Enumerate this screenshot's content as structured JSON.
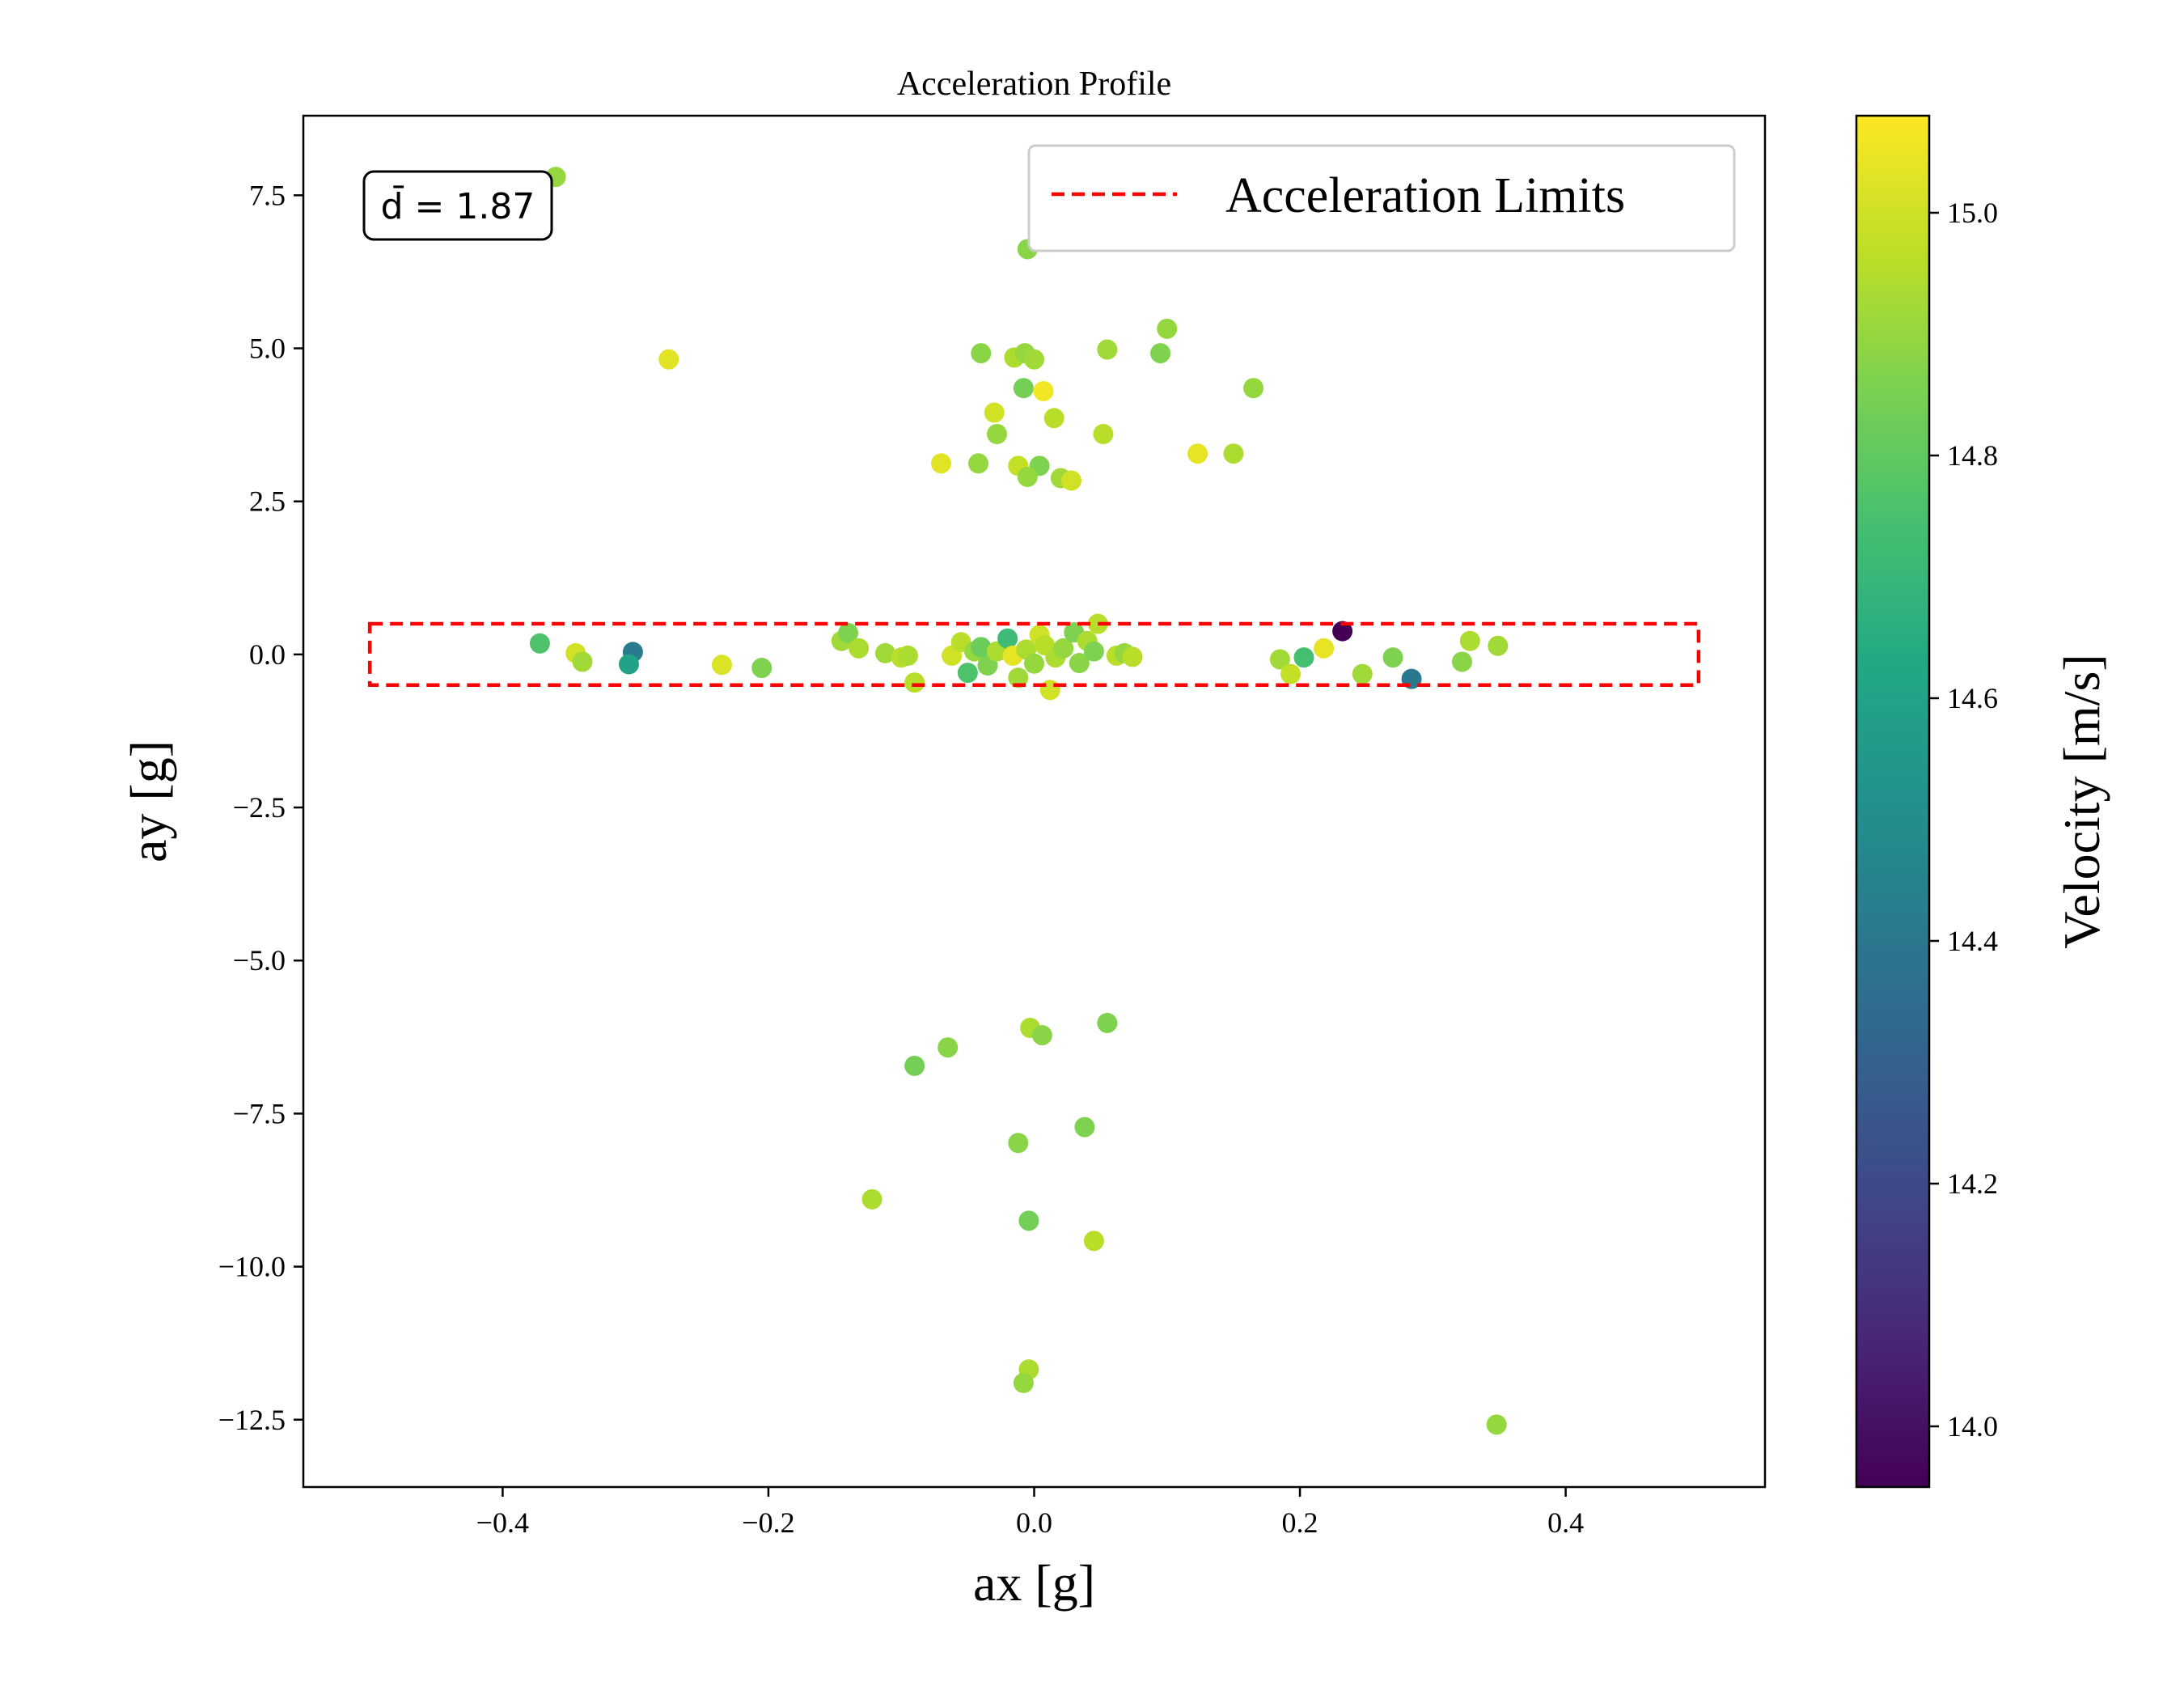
{
  "chart_data": {
    "type": "scatter",
    "title": "Acceleration Profile",
    "xlabel": "ax [g]",
    "ylabel": "ay [g]",
    "xlim": [
      -0.55,
      0.55
    ],
    "ylim": [
      -13.6,
      8.8
    ],
    "xticks": [
      -0.4,
      -0.2,
      0.0,
      0.2,
      0.4
    ],
    "yticks": [
      -12.5,
      -10.0,
      -7.5,
      -5.0,
      -2.5,
      0.0,
      2.5,
      5.0,
      7.5
    ],
    "tick_labels": {
      "x": [
        "−0.4",
        "−0.2",
        "0.0",
        "0.2",
        "0.4"
      ],
      "y": [
        "−12.5",
        "−10.0",
        "−7.5",
        "−5.0",
        "−2.5",
        "0.0",
        "2.5",
        "5.0",
        "7.5"
      ]
    },
    "grid": false,
    "legend": {
      "position": "top-right",
      "entries": [
        {
          "label": "Acceleration Limits",
          "color": "#ff0000",
          "style": "dashed"
        }
      ]
    },
    "limits_box": {
      "x": [
        -0.5,
        0.5
      ],
      "y": [
        -0.5,
        0.5
      ],
      "color": "#ff0000"
    },
    "annotation": {
      "text": "d̄ = 1.87",
      "position": "top-left"
    },
    "colorbar": {
      "label": "Velocity [m/s]",
      "colormap": "viridis",
      "range": [
        13.95,
        15.08
      ],
      "ticks": [
        14.0,
        14.2,
        14.4,
        14.6,
        14.8,
        15.0
      ],
      "tick_labels": [
        "14.0",
        "14.2",
        "14.4",
        "14.6",
        "14.8",
        "15.0"
      ]
    },
    "points": [
      {
        "x": -0.36,
        "y": 7.8,
        "v": 14.9
      },
      {
        "x": -0.275,
        "y": 4.82,
        "v": 15.03
      },
      {
        "x": -0.005,
        "y": 6.62,
        "v": 14.88
      },
      {
        "x": 0.01,
        "y": 6.78,
        "v": 15.02
      },
      {
        "x": -0.04,
        "y": 4.92,
        "v": 14.88
      },
      {
        "x": -0.015,
        "y": 4.85,
        "v": 14.94
      },
      {
        "x": -0.007,
        "y": 4.92,
        "v": 14.9
      },
      {
        "x": 0.0,
        "y": 4.82,
        "v": 14.92
      },
      {
        "x": 0.055,
        "y": 4.98,
        "v": 14.92
      },
      {
        "x": 0.095,
        "y": 4.92,
        "v": 14.86
      },
      {
        "x": 0.1,
        "y": 5.32,
        "v": 14.9
      },
      {
        "x": -0.008,
        "y": 4.35,
        "v": 14.84
      },
      {
        "x": 0.007,
        "y": 4.3,
        "v": 15.06
      },
      {
        "x": 0.165,
        "y": 4.35,
        "v": 14.9
      },
      {
        "x": -0.03,
        "y": 3.95,
        "v": 15.0
      },
      {
        "x": 0.015,
        "y": 3.86,
        "v": 14.96
      },
      {
        "x": -0.028,
        "y": 3.6,
        "v": 14.9
      },
      {
        "x": 0.052,
        "y": 3.6,
        "v": 14.96
      },
      {
        "x": -0.07,
        "y": 3.12,
        "v": 15.03
      },
      {
        "x": -0.042,
        "y": 3.12,
        "v": 14.9
      },
      {
        "x": -0.012,
        "y": 3.08,
        "v": 14.98
      },
      {
        "x": 0.004,
        "y": 3.08,
        "v": 14.86
      },
      {
        "x": -0.005,
        "y": 2.9,
        "v": 14.9
      },
      {
        "x": 0.02,
        "y": 2.88,
        "v": 14.92
      },
      {
        "x": 0.028,
        "y": 2.84,
        "v": 15.0
      },
      {
        "x": 0.123,
        "y": 3.28,
        "v": 15.04
      },
      {
        "x": 0.15,
        "y": 3.28,
        "v": 14.94
      },
      {
        "x": -0.372,
        "y": 0.18,
        "v": 14.76
      },
      {
        "x": -0.345,
        "y": 0.02,
        "v": 15.0
      },
      {
        "x": -0.34,
        "y": -0.12,
        "v": 14.92
      },
      {
        "x": -0.302,
        "y": 0.04,
        "v": 14.42
      },
      {
        "x": -0.305,
        "y": -0.16,
        "v": 14.6
      },
      {
        "x": -0.235,
        "y": -0.17,
        "v": 15.02
      },
      {
        "x": -0.205,
        "y": -0.22,
        "v": 14.86
      },
      {
        "x": -0.145,
        "y": 0.22,
        "v": 14.92
      },
      {
        "x": -0.14,
        "y": 0.35,
        "v": 14.86
      },
      {
        "x": -0.132,
        "y": 0.1,
        "v": 14.94
      },
      {
        "x": -0.112,
        "y": 0.02,
        "v": 14.92
      },
      {
        "x": -0.1,
        "y": -0.05,
        "v": 14.96
      },
      {
        "x": -0.095,
        "y": -0.02,
        "v": 14.94
      },
      {
        "x": -0.09,
        "y": -0.46,
        "v": 14.96
      },
      {
        "x": -0.062,
        "y": -0.02,
        "v": 15.0
      },
      {
        "x": -0.055,
        "y": 0.2,
        "v": 14.96
      },
      {
        "x": -0.05,
        "y": -0.3,
        "v": 14.76
      },
      {
        "x": -0.045,
        "y": 0.05,
        "v": 14.9
      },
      {
        "x": -0.04,
        "y": 0.12,
        "v": 14.82
      },
      {
        "x": -0.035,
        "y": -0.18,
        "v": 14.86
      },
      {
        "x": -0.028,
        "y": 0.05,
        "v": 14.94
      },
      {
        "x": -0.02,
        "y": 0.26,
        "v": 14.72
      },
      {
        "x": -0.016,
        "y": -0.02,
        "v": 15.04
      },
      {
        "x": -0.012,
        "y": -0.38,
        "v": 14.92
      },
      {
        "x": -0.006,
        "y": 0.08,
        "v": 14.94
      },
      {
        "x": 0.0,
        "y": -0.15,
        "v": 14.9
      },
      {
        "x": 0.004,
        "y": 0.32,
        "v": 15.0
      },
      {
        "x": 0.008,
        "y": 0.15,
        "v": 14.96
      },
      {
        "x": 0.012,
        "y": -0.58,
        "v": 15.0
      },
      {
        "x": 0.016,
        "y": -0.05,
        "v": 14.94
      },
      {
        "x": 0.022,
        "y": 0.1,
        "v": 14.9
      },
      {
        "x": 0.03,
        "y": 0.36,
        "v": 14.86
      },
      {
        "x": 0.034,
        "y": -0.14,
        "v": 14.88
      },
      {
        "x": 0.04,
        "y": 0.22,
        "v": 14.94
      },
      {
        "x": 0.045,
        "y": 0.05,
        "v": 14.86
      },
      {
        "x": 0.048,
        "y": 0.5,
        "v": 14.96
      },
      {
        "x": 0.062,
        "y": -0.02,
        "v": 14.96
      },
      {
        "x": 0.068,
        "y": 0.02,
        "v": 14.9
      },
      {
        "x": 0.074,
        "y": -0.04,
        "v": 14.96
      },
      {
        "x": 0.185,
        "y": -0.08,
        "v": 14.92
      },
      {
        "x": 0.193,
        "y": -0.32,
        "v": 14.98
      },
      {
        "x": 0.203,
        "y": -0.05,
        "v": 14.74
      },
      {
        "x": 0.218,
        "y": 0.1,
        "v": 15.04
      },
      {
        "x": 0.232,
        "y": 0.38,
        "v": 13.95
      },
      {
        "x": 0.247,
        "y": -0.32,
        "v": 14.92
      },
      {
        "x": 0.27,
        "y": -0.05,
        "v": 14.86
      },
      {
        "x": 0.284,
        "y": -0.4,
        "v": 14.4
      },
      {
        "x": 0.322,
        "y": -0.12,
        "v": 14.88
      },
      {
        "x": 0.328,
        "y": 0.22,
        "v": 14.94
      },
      {
        "x": 0.349,
        "y": 0.14,
        "v": 14.92
      },
      {
        "x": -0.09,
        "y": -6.72,
        "v": 14.84
      },
      {
        "x": -0.065,
        "y": -6.42,
        "v": 14.88
      },
      {
        "x": -0.003,
        "y": -6.1,
        "v": 14.94
      },
      {
        "x": 0.006,
        "y": -6.22,
        "v": 14.88
      },
      {
        "x": 0.055,
        "y": -6.02,
        "v": 14.86
      },
      {
        "x": -0.012,
        "y": -7.98,
        "v": 14.88
      },
      {
        "x": 0.038,
        "y": -7.72,
        "v": 14.86
      },
      {
        "x": -0.122,
        "y": -8.9,
        "v": 14.94
      },
      {
        "x": -0.004,
        "y": -9.25,
        "v": 14.84
      },
      {
        "x": 0.045,
        "y": -9.58,
        "v": 14.96
      },
      {
        "x": -0.004,
        "y": -11.68,
        "v": 14.94
      },
      {
        "x": -0.008,
        "y": -11.9,
        "v": 14.9
      },
      {
        "x": 0.348,
        "y": -12.58,
        "v": 14.9
      }
    ]
  }
}
